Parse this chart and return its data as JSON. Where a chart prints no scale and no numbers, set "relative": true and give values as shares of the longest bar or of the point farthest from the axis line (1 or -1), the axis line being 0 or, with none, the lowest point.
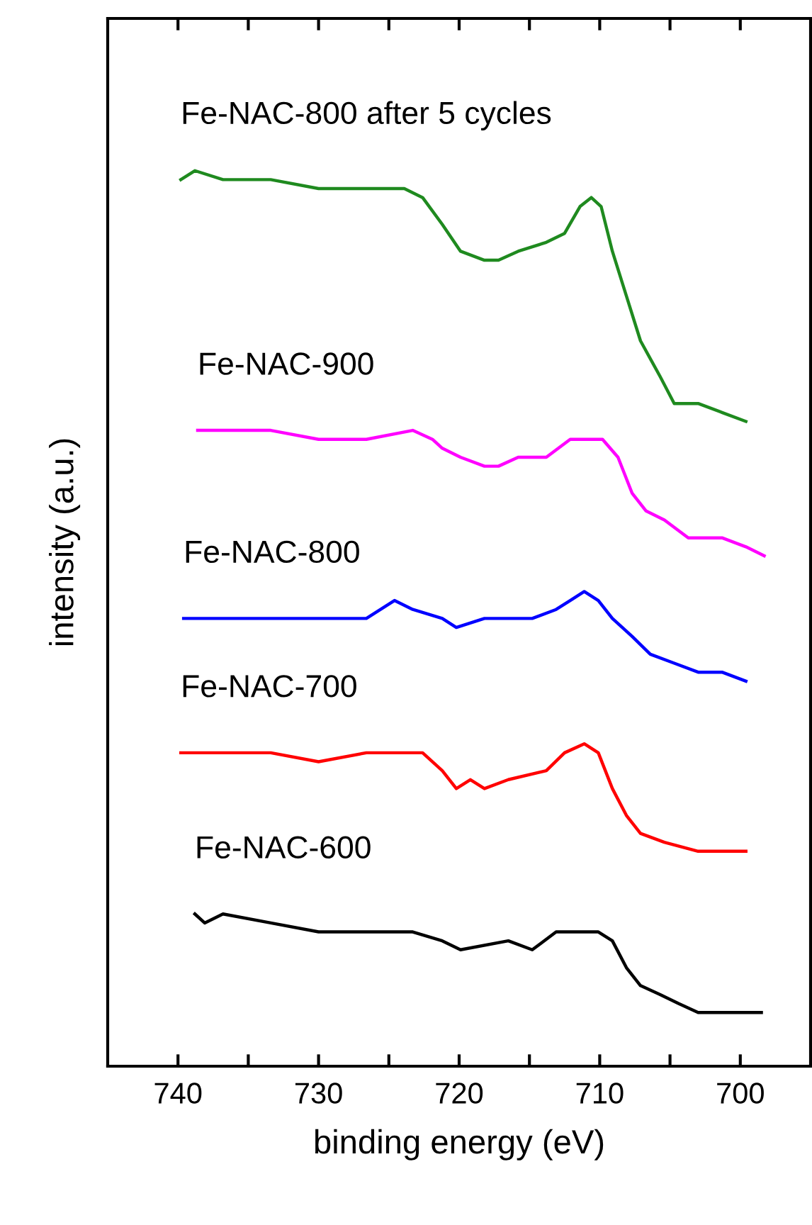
{
  "chart_data": {
    "type": "line",
    "relative": true,
    "xlabel": "binding energy (eV)",
    "ylabel": "intensity (a.u.)",
    "xlim": [
      745,
      695
    ],
    "xticks": [
      740,
      {
        "value": 735,
        "label": null
      },
      730,
      {
        "value": 725,
        "label": null
      },
      720,
      {
        "value": 715,
        "label": null
      },
      710,
      {
        "value": 705,
        "label": null
      },
      700
    ],
    "tick_labels": "x",
    "grid": false,
    "legend": false,
    "marker": "none",
    "line_style": "solid",
    "series": [
      {
        "name": "Fe-NAC-800 after 5 cycles",
        "color": "#1f8a1f",
        "x": [
          739.8,
          738.8,
          736.8,
          733.4,
          730.0,
          726.6,
          723.9,
          722.6,
          721.2,
          719.9,
          718.2,
          717.2,
          715.8,
          713.8,
          712.5,
          711.4,
          710.6,
          709.9,
          709.1,
          708.1,
          707.1,
          705.7,
          704.7,
          703.0,
          701.3,
          699.6
        ],
        "values": [
          0.99,
          1.0,
          0.99,
          0.99,
          0.98,
          0.98,
          0.98,
          0.97,
          0.94,
          0.91,
          0.9,
          0.9,
          0.91,
          0.92,
          0.93,
          0.96,
          0.97,
          0.96,
          0.91,
          0.86,
          0.81,
          0.77,
          0.74,
          0.74,
          0.73,
          0.72
        ]
      },
      {
        "name": "Fe-NAC-900",
        "color": "#ff00ff",
        "x": [
          738.6,
          736.8,
          733.4,
          730.0,
          726.6,
          723.3,
          721.9,
          721.2,
          719.9,
          718.2,
          717.2,
          715.8,
          713.8,
          712.1,
          711.1,
          709.8,
          708.7,
          707.7,
          706.7,
          705.4,
          703.7,
          701.3,
          699.6,
          698.3
        ],
        "values": [
          0.71,
          0.71,
          0.71,
          0.7,
          0.7,
          0.71,
          0.7,
          0.69,
          0.68,
          0.67,
          0.67,
          0.68,
          0.68,
          0.7,
          0.7,
          0.7,
          0.68,
          0.64,
          0.62,
          0.61,
          0.59,
          0.59,
          0.58,
          0.57
        ]
      },
      {
        "name": "Fe-NAC-800",
        "color": "#0000ff",
        "x": [
          739.6,
          736.8,
          733.4,
          730.0,
          726.6,
          724.6,
          723.3,
          721.2,
          720.2,
          718.2,
          714.8,
          713.1,
          712.1,
          711.1,
          710.1,
          709.1,
          707.7,
          706.4,
          704.7,
          703.0,
          701.3,
          699.6
        ],
        "values": [
          0.5,
          0.5,
          0.5,
          0.5,
          0.5,
          0.52,
          0.51,
          0.5,
          0.49,
          0.5,
          0.5,
          0.51,
          0.52,
          0.53,
          0.52,
          0.5,
          0.48,
          0.46,
          0.45,
          0.44,
          0.44,
          0.43
        ]
      },
      {
        "name": "Fe-NAC-700",
        "color": "#ff0000",
        "x": [
          739.8,
          736.8,
          733.4,
          730.0,
          726.6,
          724.6,
          722.6,
          721.2,
          720.2,
          719.2,
          718.2,
          716.5,
          713.8,
          712.5,
          711.1,
          710.1,
          709.1,
          708.1,
          707.1,
          705.4,
          703.0,
          701.3,
          699.6
        ],
        "values": [
          0.35,
          0.35,
          0.35,
          0.34,
          0.35,
          0.35,
          0.35,
          0.33,
          0.31,
          0.32,
          0.31,
          0.32,
          0.33,
          0.35,
          0.36,
          0.35,
          0.31,
          0.28,
          0.26,
          0.25,
          0.24,
          0.24,
          0.24
        ]
      },
      {
        "name": "Fe-NAC-600",
        "color": "#000000",
        "x": [
          738.8,
          738.1,
          736.8,
          733.4,
          730.0,
          726.6,
          723.3,
          721.2,
          719.9,
          716.5,
          714.8,
          713.1,
          711.8,
          710.1,
          709.1,
          708.1,
          707.1,
          705.7,
          704.4,
          703.0,
          701.3,
          698.5
        ],
        "values": [
          0.17,
          0.16,
          0.17,
          0.16,
          0.15,
          0.15,
          0.15,
          0.14,
          0.13,
          0.14,
          0.13,
          0.15,
          0.15,
          0.15,
          0.14,
          0.11,
          0.09,
          0.08,
          0.07,
          0.06,
          0.06,
          0.06
        ]
      }
    ]
  }
}
